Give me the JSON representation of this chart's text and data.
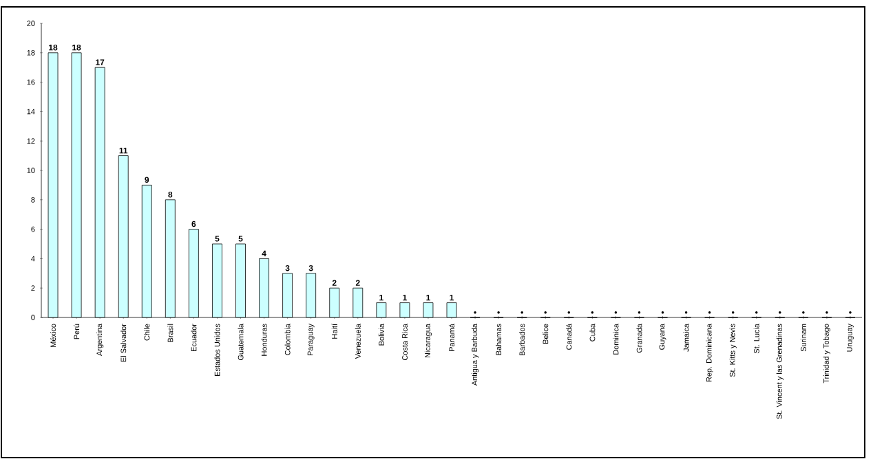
{
  "chart_data": {
    "type": "bar",
    "categories": [
      "México",
      "Perú",
      "Argentina",
      "El Salvador",
      "Chile",
      "Brasil",
      "Ecuador",
      "Estados Unidos",
      "Guatemala",
      "Honduras",
      "Colombia",
      "Paraguay",
      "Haití",
      "Venezuela",
      "Bolivia",
      "Costa Rica",
      "Nicaragua",
      "Panamá",
      "Antigua y Barbuda",
      "Bahamas",
      "Barbados",
      "Belice",
      "Canadá",
      "Cuba",
      "Dominica",
      "Granada",
      "Guyana",
      "Jamaica",
      "Rep. Dominicana",
      "St. Kitts y Nevis",
      "St. Lucia",
      "St. Vincent y las Grenadinas",
      "Surinam",
      "Trinidad y Tobago",
      "Uruguay"
    ],
    "values": [
      18,
      18,
      17,
      11,
      9,
      8,
      6,
      5,
      5,
      4,
      3,
      3,
      2,
      2,
      1,
      1,
      1,
      1,
      0,
      0,
      0,
      0,
      0,
      0,
      0,
      0,
      0,
      0,
      0,
      0,
      0,
      0,
      0,
      0,
      0
    ],
    "value_labels": [
      "18",
      "18",
      "17",
      "11",
      "9",
      "8",
      "6",
      "5",
      "5",
      "4",
      "3",
      "3",
      "2",
      "2",
      "1",
      "1",
      "1",
      "1",
      "•",
      "•",
      "•",
      "•",
      "•",
      "•",
      "•",
      "•",
      "•",
      "•",
      "•",
      "•",
      "•",
      "•",
      "•",
      "•",
      "•"
    ],
    "color": "#ccffff",
    "ylim": [
      0,
      20
    ],
    "yticks": [
      0,
      2,
      4,
      6,
      8,
      10,
      12,
      14,
      16,
      18,
      20
    ]
  }
}
